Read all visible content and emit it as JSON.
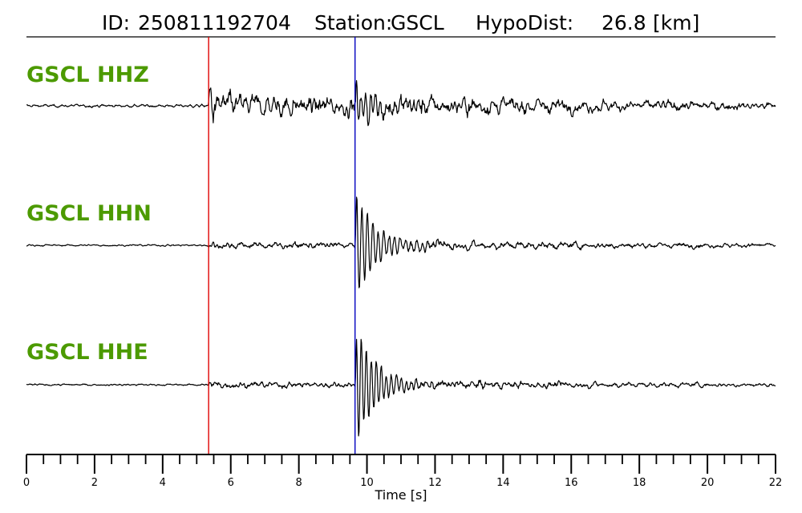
{
  "chart_data": {
    "type": "line",
    "title": {
      "id_label": "ID:",
      "id_value": "250811192704",
      "station_label": "Station:",
      "station_value": "GSCL",
      "dist_label": "HypoDist:",
      "dist_value": "26.8",
      "dist_unit": "[km]"
    },
    "xlabel": "Time [s]",
    "xlim": [
      0,
      22
    ],
    "major_ticks": [
      0,
      2,
      4,
      6,
      8,
      10,
      12,
      14,
      16,
      18,
      20,
      22
    ],
    "minor_tick_step": 0.5,
    "picks": [
      {
        "phase": "P",
        "time": 5.35,
        "color": "#e00000"
      },
      {
        "phase": "S",
        "time": 9.65,
        "color": "#0000c0"
      }
    ],
    "grid": false,
    "series": [
      {
        "name": "GSCL HHZ",
        "color": "#000000"
      },
      {
        "name": "GSCL HHN",
        "color": "#000000"
      },
      {
        "name": "GSCL HHE",
        "color": "#000000"
      }
    ]
  }
}
